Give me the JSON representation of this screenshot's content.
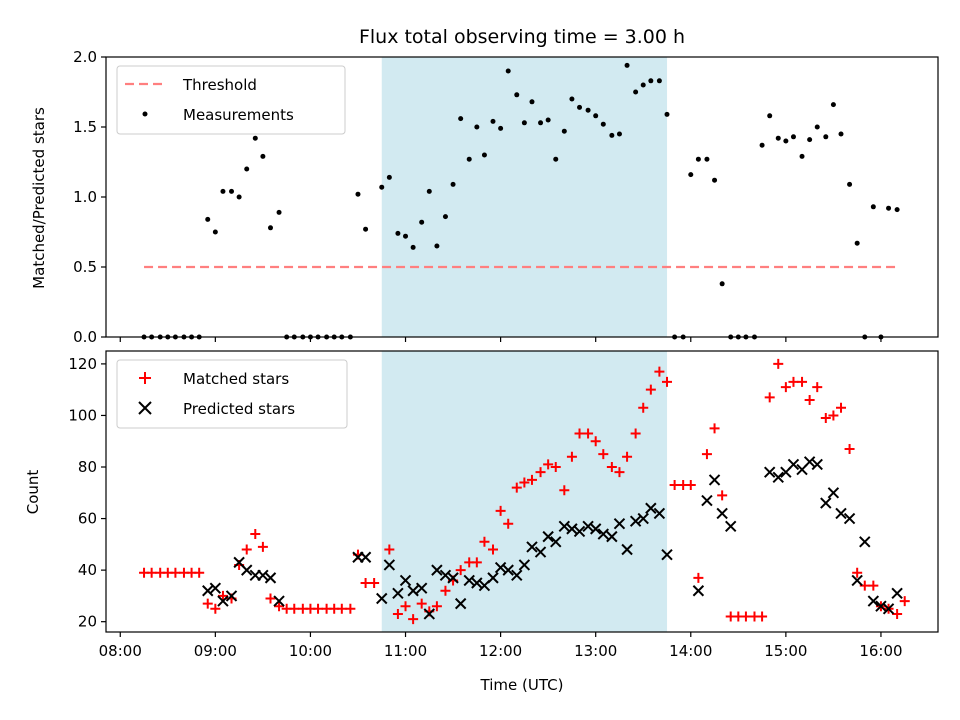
{
  "chart_data": [
    {
      "type": "scatter",
      "title": "Flux total observing time = 3.00 h",
      "ylabel": "Matched/Predicted stars",
      "xlabel": "",
      "ylim": [
        0,
        2.0
      ],
      "yticks": [
        0.0,
        0.5,
        1.0,
        1.5,
        2.0
      ],
      "ytick_labels": [
        "0.0",
        "0.5",
        "1.0",
        "1.5",
        "2.0"
      ],
      "grid": false,
      "legend_position": "upper-left",
      "shaded_region": {
        "x_start": 10.75,
        "x_end": 13.75,
        "color": "#add8e6"
      },
      "threshold": {
        "name": "Threshold",
        "y": 0.5,
        "x_range": [
          8.25,
          16.2
        ],
        "color": "#ff7f7f"
      },
      "series": [
        {
          "name": "Measurements",
          "color": "#000000",
          "points": [
            [
              8.25,
              0
            ],
            [
              8.33,
              0
            ],
            [
              8.42,
              0
            ],
            [
              8.5,
              0
            ],
            [
              8.58,
              0
            ],
            [
              8.67,
              0
            ],
            [
              8.75,
              0
            ],
            [
              8.83,
              0
            ],
            [
              8.92,
              0.84
            ],
            [
              9.0,
              0.75
            ],
            [
              9.08,
              1.04
            ],
            [
              9.17,
              1.04
            ],
            [
              9.25,
              1.0
            ],
            [
              9.33,
              1.2
            ],
            [
              9.42,
              1.42
            ],
            [
              9.5,
              1.29
            ],
            [
              9.58,
              0.78
            ],
            [
              9.67,
              0.89
            ],
            [
              9.75,
              0
            ],
            [
              9.83,
              0
            ],
            [
              9.92,
              0
            ],
            [
              10.0,
              0
            ],
            [
              10.08,
              0
            ],
            [
              10.17,
              0
            ],
            [
              10.25,
              0
            ],
            [
              10.33,
              0
            ],
            [
              10.42,
              0
            ],
            [
              10.5,
              1.02
            ],
            [
              10.58,
              0.77
            ],
            [
              10.75,
              1.07
            ],
            [
              10.83,
              1.14
            ],
            [
              10.92,
              0.74
            ],
            [
              11.0,
              0.72
            ],
            [
              11.08,
              0.64
            ],
            [
              11.17,
              0.82
            ],
            [
              11.25,
              1.04
            ],
            [
              11.33,
              0.65
            ],
            [
              11.42,
              0.86
            ],
            [
              11.5,
              1.09
            ],
            [
              11.58,
              1.56
            ],
            [
              11.67,
              1.27
            ],
            [
              11.75,
              1.5
            ],
            [
              11.83,
              1.3
            ],
            [
              11.92,
              1.54
            ],
            [
              12.0,
              1.49
            ],
            [
              12.08,
              1.9
            ],
            [
              12.17,
              1.73
            ],
            [
              12.25,
              1.53
            ],
            [
              12.33,
              1.68
            ],
            [
              12.42,
              1.53
            ],
            [
              12.5,
              1.55
            ],
            [
              12.58,
              1.27
            ],
            [
              12.67,
              1.47
            ],
            [
              12.75,
              1.7
            ],
            [
              12.83,
              1.64
            ],
            [
              12.92,
              1.62
            ],
            [
              13.0,
              1.58
            ],
            [
              13.08,
              1.52
            ],
            [
              13.17,
              1.44
            ],
            [
              13.25,
              1.45
            ],
            [
              13.33,
              1.94
            ],
            [
              13.42,
              1.75
            ],
            [
              13.5,
              1.8
            ],
            [
              13.58,
              1.83
            ],
            [
              13.67,
              1.83
            ],
            [
              13.75,
              1.59
            ],
            [
              13.83,
              0
            ],
            [
              13.92,
              0
            ],
            [
              14.0,
              1.16
            ],
            [
              14.08,
              1.27
            ],
            [
              14.17,
              1.27
            ],
            [
              14.25,
              1.12
            ],
            [
              14.33,
              0.38
            ],
            [
              14.42,
              0
            ],
            [
              14.5,
              0
            ],
            [
              14.58,
              0
            ],
            [
              14.67,
              0
            ],
            [
              14.75,
              1.37
            ],
            [
              14.83,
              1.58
            ],
            [
              14.92,
              1.42
            ],
            [
              15.0,
              1.4
            ],
            [
              15.08,
              1.43
            ],
            [
              15.17,
              1.29
            ],
            [
              15.25,
              1.41
            ],
            [
              15.33,
              1.5
            ],
            [
              15.42,
              1.43
            ],
            [
              15.5,
              1.66
            ],
            [
              15.58,
              1.45
            ],
            [
              15.67,
              1.09
            ],
            [
              15.75,
              0.67
            ],
            [
              15.83,
              0
            ],
            [
              15.92,
              0.93
            ],
            [
              16.0,
              0
            ],
            [
              16.08,
              0.92
            ],
            [
              16.17,
              0.91
            ]
          ]
        }
      ]
    },
    {
      "type": "scatter",
      "title": "",
      "ylabel": "Count",
      "xlabel": "Time (UTC)",
      "ylim": [
        16,
        125
      ],
      "yticks": [
        20,
        40,
        60,
        80,
        100,
        120
      ],
      "ytick_labels": [
        "20",
        "40",
        "60",
        "80",
        "100",
        "120"
      ],
      "x_axis": {
        "type": "time",
        "xlim": [
          7.85,
          16.6
        ],
        "ticks": [
          8,
          9,
          10,
          11,
          12,
          13,
          14,
          15,
          16
        ],
        "tick_labels": [
          "08:00",
          "09:00",
          "10:00",
          "11:00",
          "12:00",
          "13:00",
          "14:00",
          "15:00",
          "16:00"
        ]
      },
      "grid": false,
      "legend_position": "upper-left",
      "shaded_region": {
        "x_start": 10.75,
        "x_end": 13.75,
        "color": "#add8e6"
      },
      "series": [
        {
          "name": "Matched stars",
          "marker": "plus",
          "color": "#ff0000",
          "points": [
            [
              8.25,
              39
            ],
            [
              8.33,
              39
            ],
            [
              8.42,
              39
            ],
            [
              8.5,
              39
            ],
            [
              8.58,
              39
            ],
            [
              8.67,
              39
            ],
            [
              8.75,
              39
            ],
            [
              8.83,
              39
            ],
            [
              8.92,
              27
            ],
            [
              9.0,
              25
            ],
            [
              9.08,
              30
            ],
            [
              9.17,
              29
            ],
            [
              9.25,
              42
            ],
            [
              9.33,
              48
            ],
            [
              9.42,
              54
            ],
            [
              9.5,
              49
            ],
            [
              9.58,
              29
            ],
            [
              9.67,
              26
            ],
            [
              9.75,
              25
            ],
            [
              9.83,
              25
            ],
            [
              9.92,
              25
            ],
            [
              10.0,
              25
            ],
            [
              10.08,
              25
            ],
            [
              10.17,
              25
            ],
            [
              10.25,
              25
            ],
            [
              10.33,
              25
            ],
            [
              10.42,
              25
            ],
            [
              10.5,
              46
            ],
            [
              10.58,
              35
            ],
            [
              10.67,
              35
            ],
            [
              10.83,
              48
            ],
            [
              10.92,
              23
            ],
            [
              11.0,
              26
            ],
            [
              11.08,
              21
            ],
            [
              11.17,
              27
            ],
            [
              11.25,
              24
            ],
            [
              11.33,
              26
            ],
            [
              11.42,
              32
            ],
            [
              11.5,
              36
            ],
            [
              11.58,
              40
            ],
            [
              11.67,
              43
            ],
            [
              11.75,
              43
            ],
            [
              11.83,
              51
            ],
            [
              11.92,
              48
            ],
            [
              12.0,
              63
            ],
            [
              12.08,
              58
            ],
            [
              12.17,
              72
            ],
            [
              12.25,
              74
            ],
            [
              12.33,
              75
            ],
            [
              12.42,
              78
            ],
            [
              12.5,
              81
            ],
            [
              12.58,
              80
            ],
            [
              12.67,
              71
            ],
            [
              12.75,
              84
            ],
            [
              12.83,
              93
            ],
            [
              12.92,
              93
            ],
            [
              13.0,
              90
            ],
            [
              13.08,
              85
            ],
            [
              13.17,
              80
            ],
            [
              13.25,
              78
            ],
            [
              13.33,
              84
            ],
            [
              13.42,
              93
            ],
            [
              13.5,
              103
            ],
            [
              13.58,
              110
            ],
            [
              13.67,
              117
            ],
            [
              13.75,
              113
            ],
            [
              13.83,
              73
            ],
            [
              13.92,
              73
            ],
            [
              14.0,
              73
            ],
            [
              14.08,
              37
            ],
            [
              14.17,
              85
            ],
            [
              14.25,
              95
            ],
            [
              14.33,
              69
            ],
            [
              14.42,
              22
            ],
            [
              14.5,
              22
            ],
            [
              14.58,
              22
            ],
            [
              14.67,
              22
            ],
            [
              14.75,
              22
            ],
            [
              14.83,
              107
            ],
            [
              14.92,
              120
            ],
            [
              15.0,
              111
            ],
            [
              15.08,
              113
            ],
            [
              15.17,
              113
            ],
            [
              15.25,
              106
            ],
            [
              15.33,
              111
            ],
            [
              15.42,
              99
            ],
            [
              15.5,
              100
            ],
            [
              15.58,
              103
            ],
            [
              15.67,
              87
            ],
            [
              15.75,
              39
            ],
            [
              15.83,
              34
            ],
            [
              15.92,
              34
            ],
            [
              16.0,
              26
            ],
            [
              16.08,
              25
            ],
            [
              16.17,
              23
            ],
            [
              16.25,
              28
            ]
          ]
        },
        {
          "name": "Predicted stars",
          "marker": "x",
          "color": "#000000",
          "points": [
            [
              8.92,
              32
            ],
            [
              9.0,
              33
            ],
            [
              9.08,
              28
            ],
            [
              9.17,
              30
            ],
            [
              9.25,
              43
            ],
            [
              9.33,
              40
            ],
            [
              9.42,
              38
            ],
            [
              9.5,
              38
            ],
            [
              9.58,
              37
            ],
            [
              9.67,
              28
            ],
            [
              10.5,
              45
            ],
            [
              10.58,
              45
            ],
            [
              10.75,
              29
            ],
            [
              10.83,
              42
            ],
            [
              10.92,
              31
            ],
            [
              11.0,
              36
            ],
            [
              11.08,
              32
            ],
            [
              11.17,
              33
            ],
            [
              11.25,
              23
            ],
            [
              11.33,
              40
            ],
            [
              11.42,
              38
            ],
            [
              11.5,
              37
            ],
            [
              11.58,
              27
            ],
            [
              11.67,
              36
            ],
            [
              11.75,
              35
            ],
            [
              11.83,
              34
            ],
            [
              11.92,
              37
            ],
            [
              12.0,
              41
            ],
            [
              12.08,
              40
            ],
            [
              12.17,
              38
            ],
            [
              12.25,
              42
            ],
            [
              12.33,
              49
            ],
            [
              12.42,
              47
            ],
            [
              12.5,
              53
            ],
            [
              12.58,
              51
            ],
            [
              12.67,
              57
            ],
            [
              12.75,
              56
            ],
            [
              12.83,
              55
            ],
            [
              12.92,
              57
            ],
            [
              13.0,
              56
            ],
            [
              13.08,
              54
            ],
            [
              13.17,
              53
            ],
            [
              13.25,
              58
            ],
            [
              13.33,
              48
            ],
            [
              13.42,
              59
            ],
            [
              13.5,
              60
            ],
            [
              13.58,
              64
            ],
            [
              13.67,
              62
            ],
            [
              13.75,
              46
            ],
            [
              14.08,
              32
            ],
            [
              14.17,
              67
            ],
            [
              14.25,
              75
            ],
            [
              14.33,
              62
            ],
            [
              14.42,
              57
            ],
            [
              14.83,
              78
            ],
            [
              14.92,
              76
            ],
            [
              15.0,
              78
            ],
            [
              15.08,
              81
            ],
            [
              15.17,
              79
            ],
            [
              15.25,
              82
            ],
            [
              15.33,
              81
            ],
            [
              15.42,
              66
            ],
            [
              15.5,
              70
            ],
            [
              15.58,
              62
            ],
            [
              15.67,
              60
            ],
            [
              15.75,
              36
            ],
            [
              15.83,
              51
            ],
            [
              15.92,
              28
            ],
            [
              16.0,
              26
            ],
            [
              16.08,
              25
            ],
            [
              16.17,
              31
            ]
          ]
        }
      ]
    }
  ]
}
